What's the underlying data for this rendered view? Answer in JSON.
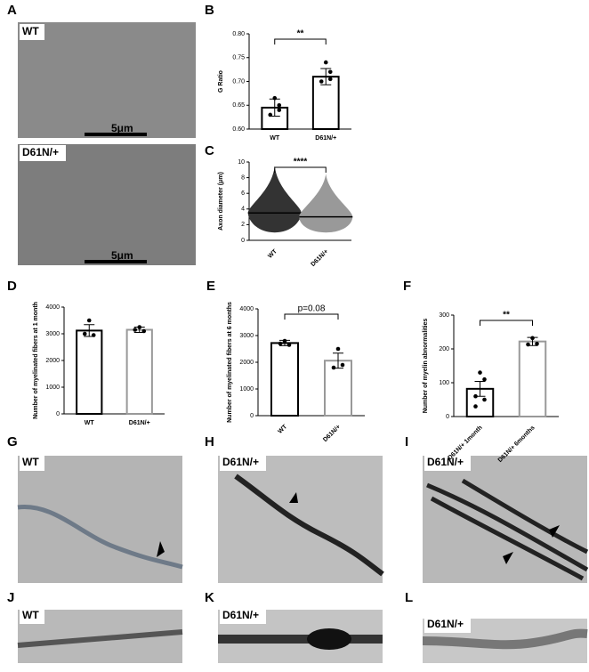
{
  "panel_labels": [
    "A",
    "B",
    "C",
    "D",
    "E",
    "F",
    "G",
    "H",
    "I",
    "J",
    "K",
    "L"
  ],
  "image_labels": [
    "WT",
    "D61N/+",
    "5μm",
    "5μm",
    "WT",
    "D61N/+",
    "D61N/+",
    "WT",
    "D61N/+",
    "D61N/+"
  ],
  "chart_data": [
    {
      "type": "bar",
      "ylabel": "G Ratio",
      "categories": [
        "WT",
        "D61N/+"
      ],
      "values": [
        0.645,
        0.71
      ],
      "errors": [
        0.018,
        0.017
      ],
      "points": [
        [
          0.665,
          0.64,
          0.63,
          0.65
        ],
        [
          0.74,
          0.72,
          0.7,
          0.705
        ]
      ],
      "colors": [
        "#000000",
        "#000000"
      ],
      "ylim": [
        0.6,
        0.8
      ],
      "yticks": [
        {
          "value": 0.6,
          "label": "0.60"
        },
        {
          "value": 0.65,
          "label": "0.65"
        },
        {
          "value": 0.7,
          "label": "0.70"
        },
        {
          "value": 0.75,
          "label": "0.75"
        },
        {
          "value": 0.8,
          "label": "0.80"
        }
      ],
      "annotation": "**"
    },
    {
      "type": "dot",
      "ylabel": "Axon diameter (μm)",
      "categories": [
        "WT",
        "D61N/+"
      ],
      "values": [
        3.5,
        3.0
      ],
      "ranges": [
        [
          1,
          9.5
        ],
        [
          1,
          8.5
        ]
      ],
      "colors": [
        "#333333",
        "#999999"
      ],
      "ylim": [
        0,
        10
      ],
      "yticks": [
        0,
        2,
        4,
        6,
        8,
        10
      ],
      "annotation": "****"
    },
    {
      "type": "bar",
      "ylabel": "Number of myelinated fibers at 1 month",
      "categories": [
        "WT",
        "D61N/+"
      ],
      "values": [
        3120,
        3150
      ],
      "errors": [
        220,
        100
      ],
      "points": [
        [
          3500,
          2950,
          3000
        ],
        [
          3250,
          3100,
          3150
        ]
      ],
      "colors": [
        "#000000",
        "#999999"
      ],
      "ylim": [
        0,
        4000
      ],
      "yticks": [
        0,
        1000,
        2000,
        3000,
        4000
      ]
    },
    {
      "type": "bar",
      "ylabel": "Number of myelinated fibers at 6 months",
      "categories": [
        "WT",
        "D61N/+"
      ],
      "values": [
        2720,
        2060
      ],
      "errors": [
        100,
        280
      ],
      "points": [
        [
          2800,
          2650,
          2700
        ],
        [
          2500,
          1900,
          1800
        ]
      ],
      "colors": [
        "#000000",
        "#999999"
      ],
      "ylim": [
        0,
        4000
      ],
      "yticks": [
        0,
        1000,
        2000,
        3000,
        4000
      ],
      "annotation": "p=0.08"
    },
    {
      "type": "bar",
      "ylabel": "Number of myelin abnormalities",
      "categories": [
        "D61N/+ 1month",
        "D61N/+ 6months"
      ],
      "values": [
        82,
        222
      ],
      "errors": [
        22,
        12
      ],
      "points": [
        [
          130,
          110,
          60,
          50,
          30
        ],
        [
          232,
          215,
          213
        ]
      ],
      "colors": [
        "#000000",
        "#999999"
      ],
      "ylim": [
        0,
        300
      ],
      "yticks": [
        0,
        100,
        200,
        300
      ],
      "annotation": "**"
    }
  ]
}
